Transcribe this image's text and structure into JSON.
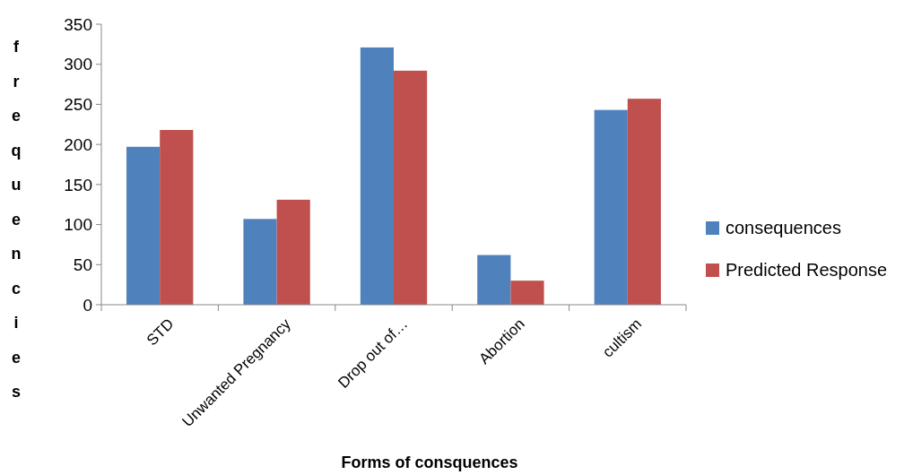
{
  "chart_data": {
    "type": "bar",
    "xlabel": "Forms of consquences",
    "ylabel": "frequencies",
    "categories": [
      "STD",
      "Unwanted Pregnancy",
      "Drop out of…",
      "Abortion",
      "cultism"
    ],
    "series": [
      {
        "name": "consequences",
        "color": "#4f81bd",
        "values": [
          197,
          107,
          321,
          62,
          243
        ]
      },
      {
        "name": "Predicted Response",
        "color": "#c0504d",
        "values": [
          218,
          131,
          292,
          30,
          257
        ]
      }
    ],
    "ylim": [
      0,
      350
    ],
    "yticks": [
      0,
      50,
      100,
      150,
      200,
      250,
      300,
      350
    ],
    "grid": false,
    "legend": "right"
  }
}
